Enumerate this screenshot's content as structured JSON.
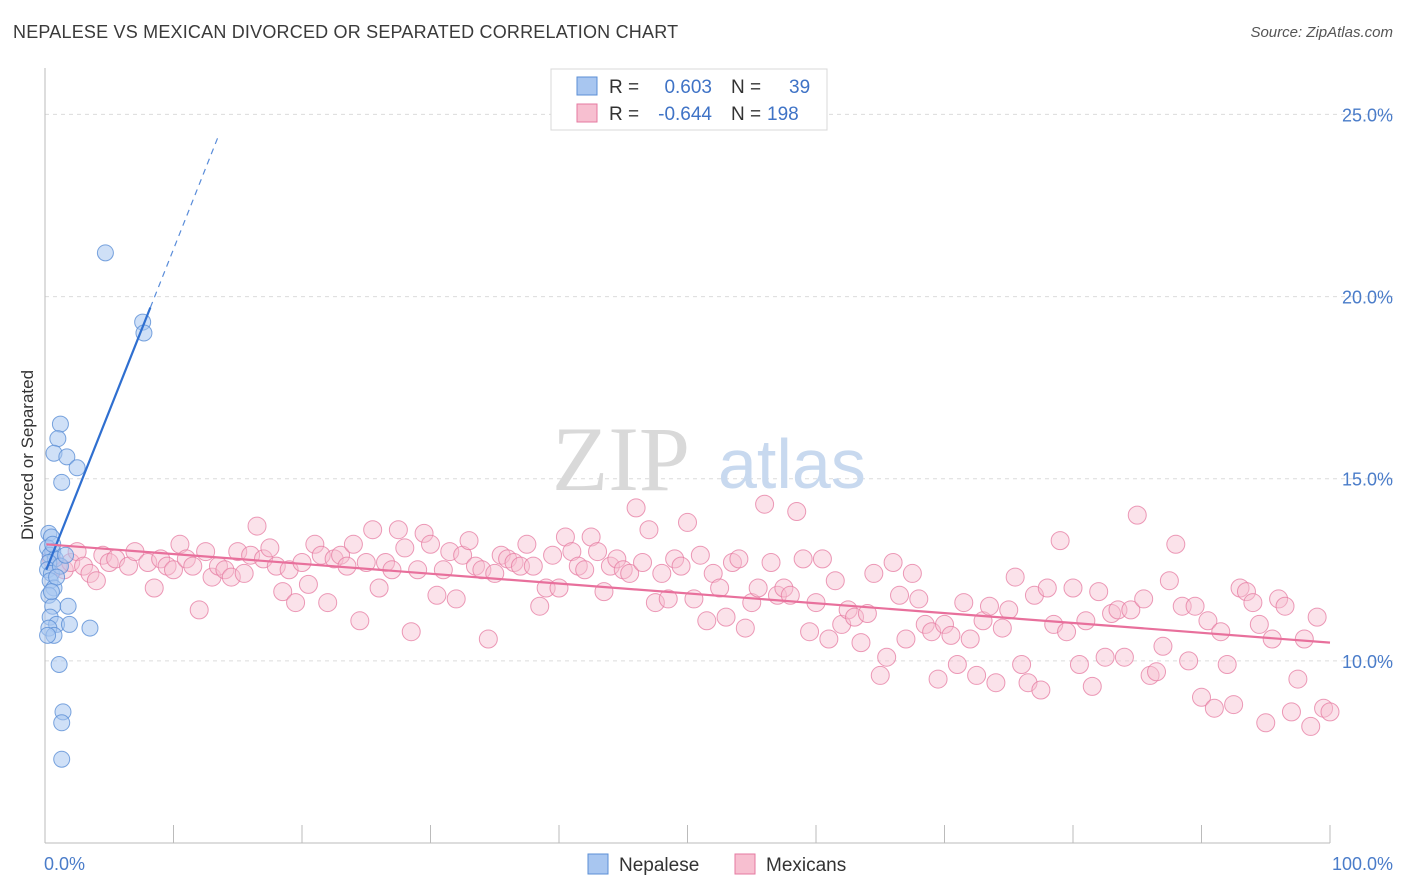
{
  "title": "NEPALESE VS MEXICAN DIVORCED OR SEPARATED CORRELATION CHART",
  "source": "Source: ZipAtlas.com",
  "watermark": {
    "part1": "ZIP",
    "part2": "atlas"
  },
  "legend": {
    "rows": [
      {
        "r_label": "R =",
        "r_value": "0.603",
        "n_label": "N =",
        "n_value": "39",
        "color": "#a8c6f0",
        "stroke": "#5b8fd6"
      },
      {
        "r_label": "R =",
        "r_value": "-0.644",
        "n_label": "N =",
        "n_value": "198",
        "color": "#f7bfd0",
        "stroke": "#e57aa0"
      }
    ]
  },
  "bottom_legend": [
    {
      "label": "Nepalese",
      "color": "#a8c6f0",
      "stroke": "#5b8fd6"
    },
    {
      "label": "Mexicans",
      "color": "#f7bfd0",
      "stroke": "#e57aa0"
    }
  ],
  "chart_data": {
    "type": "scatter",
    "title": "NEPALESE VS MEXICAN DIVORCED OR SEPARATED CORRELATION CHART",
    "xlabel": "",
    "ylabel": "Divorced or Separated",
    "xlim": [
      0,
      100
    ],
    "ylim": [
      5,
      26
    ],
    "x_tick_labels": [
      "0.0%",
      "100.0%"
    ],
    "y_ticks": [
      10,
      15,
      20,
      25
    ],
    "y_tick_labels": [
      "10.0%",
      "15.0%",
      "20.0%",
      "25.0%"
    ],
    "grid": "horizontal dashed",
    "legend_position": "top-center",
    "series": [
      {
        "name": "Nepalese",
        "color": "#a8c6f0",
        "stroke": "#5b8fd6",
        "trend_color": "#2f6fd0",
        "trend": {
          "x0": 0.1,
          "y0": 12.5,
          "x1": 8.2,
          "y1": 19.7,
          "dash_to_x": 13.5
        },
        "points": [
          [
            0.3,
            13.5
          ],
          [
            0.5,
            13.4
          ],
          [
            0.2,
            13.1
          ],
          [
            0.6,
            13.0
          ],
          [
            0.4,
            12.9
          ],
          [
            0.8,
            12.8
          ],
          [
            0.3,
            12.7
          ],
          [
            0.2,
            12.5
          ],
          [
            0.5,
            12.4
          ],
          [
            0.4,
            12.2
          ],
          [
            0.7,
            12.0
          ],
          [
            0.3,
            11.8
          ],
          [
            0.6,
            11.5
          ],
          [
            1.8,
            11.5
          ],
          [
            0.4,
            11.2
          ],
          [
            0.9,
            11.0
          ],
          [
            1.9,
            11.0
          ],
          [
            0.3,
            10.9
          ],
          [
            3.5,
            10.9
          ],
          [
            0.7,
            10.7
          ],
          [
            0.2,
            10.7
          ],
          [
            1.1,
            9.9
          ],
          [
            1.4,
            8.6
          ],
          [
            1.3,
            8.3
          ],
          [
            1.3,
            7.3
          ],
          [
            1.2,
            16.5
          ],
          [
            1.0,
            16.1
          ],
          [
            0.7,
            15.7
          ],
          [
            1.7,
            15.6
          ],
          [
            2.5,
            15.3
          ],
          [
            1.3,
            14.9
          ],
          [
            4.7,
            21.2
          ],
          [
            7.6,
            19.3
          ],
          [
            7.7,
            19.0
          ],
          [
            0.6,
            13.2
          ],
          [
            1.2,
            12.6
          ],
          [
            0.9,
            12.3
          ],
          [
            0.5,
            11.9
          ],
          [
            1.6,
            12.9
          ]
        ]
      },
      {
        "name": "Mexicans",
        "color": "#f7bfd0",
        "stroke": "#e57aa0",
        "trend_color": "#e8709c",
        "trend": {
          "x0": 0.1,
          "y0": 13.2,
          "x1": 100,
          "y1": 10.5
        },
        "points": [
          [
            0.5,
            12.8
          ],
          [
            1.0,
            12.6
          ],
          [
            1.5,
            12.5
          ],
          [
            2.0,
            12.7
          ],
          [
            2.5,
            13.0
          ],
          [
            3.0,
            12.6
          ],
          [
            3.5,
            12.4
          ],
          [
            4.0,
            12.2
          ],
          [
            4.5,
            12.9
          ],
          [
            5.0,
            12.7
          ],
          [
            5.5,
            12.8
          ],
          [
            6.5,
            12.6
          ],
          [
            7.0,
            13.0
          ],
          [
            8.0,
            12.7
          ],
          [
            8.5,
            12.0
          ],
          [
            9.0,
            12.8
          ],
          [
            9.5,
            12.6
          ],
          [
            10.0,
            12.5
          ],
          [
            10.5,
            13.2
          ],
          [
            11.0,
            12.8
          ],
          [
            11.5,
            12.6
          ],
          [
            12.0,
            11.4
          ],
          [
            12.5,
            13.0
          ],
          [
            13.0,
            12.3
          ],
          [
            13.5,
            12.6
          ],
          [
            14.0,
            12.5
          ],
          [
            14.5,
            12.3
          ],
          [
            15.0,
            13.0
          ],
          [
            15.5,
            12.4
          ],
          [
            16.0,
            12.9
          ],
          [
            16.5,
            13.7
          ],
          [
            17.0,
            12.8
          ],
          [
            17.5,
            13.1
          ],
          [
            18.0,
            12.6
          ],
          [
            18.5,
            11.9
          ],
          [
            19.0,
            12.5
          ],
          [
            19.5,
            11.6
          ],
          [
            20.0,
            12.7
          ],
          [
            20.5,
            12.1
          ],
          [
            21.0,
            13.2
          ],
          [
            21.5,
            12.9
          ],
          [
            22.0,
            11.6
          ],
          [
            22.5,
            12.8
          ],
          [
            23.0,
            12.9
          ],
          [
            23.5,
            12.6
          ],
          [
            24.0,
            13.2
          ],
          [
            24.5,
            11.1
          ],
          [
            25.0,
            12.7
          ],
          [
            25.5,
            13.6
          ],
          [
            26.0,
            12.0
          ],
          [
            26.5,
            12.7
          ],
          [
            27.0,
            12.5
          ],
          [
            27.5,
            13.6
          ],
          [
            28.0,
            13.1
          ],
          [
            28.5,
            10.8
          ],
          [
            29.0,
            12.5
          ],
          [
            29.5,
            13.5
          ],
          [
            30.0,
            13.2
          ],
          [
            30.5,
            11.8
          ],
          [
            31.0,
            12.5
          ],
          [
            31.5,
            13.0
          ],
          [
            32.0,
            11.7
          ],
          [
            32.5,
            12.9
          ],
          [
            33.0,
            13.3
          ],
          [
            33.5,
            12.6
          ],
          [
            34.0,
            12.5
          ],
          [
            34.5,
            10.6
          ],
          [
            35.0,
            12.4
          ],
          [
            35.5,
            12.9
          ],
          [
            36.0,
            12.8
          ],
          [
            36.5,
            12.7
          ],
          [
            37.0,
            12.6
          ],
          [
            37.5,
            13.2
          ],
          [
            38.0,
            12.6
          ],
          [
            38.5,
            11.5
          ],
          [
            39.0,
            12.0
          ],
          [
            39.5,
            12.9
          ],
          [
            40.0,
            12.0
          ],
          [
            40.5,
            13.4
          ],
          [
            41.0,
            13.0
          ],
          [
            41.5,
            12.6
          ],
          [
            42.0,
            12.5
          ],
          [
            42.5,
            13.4
          ],
          [
            43.0,
            13.0
          ],
          [
            43.5,
            11.9
          ],
          [
            44.0,
            12.6
          ],
          [
            44.5,
            12.8
          ],
          [
            45.0,
            12.5
          ],
          [
            45.5,
            12.4
          ],
          [
            46.0,
            14.2
          ],
          [
            46.5,
            12.7
          ],
          [
            47.0,
            13.6
          ],
          [
            47.5,
            11.6
          ],
          [
            48.0,
            12.4
          ],
          [
            48.5,
            11.7
          ],
          [
            49.0,
            12.8
          ],
          [
            49.5,
            12.6
          ],
          [
            50.0,
            13.8
          ],
          [
            50.5,
            11.7
          ],
          [
            51.0,
            12.9
          ],
          [
            51.5,
            11.1
          ],
          [
            52.0,
            12.4
          ],
          [
            52.5,
            12.0
          ],
          [
            53.0,
            11.2
          ],
          [
            53.5,
            12.7
          ],
          [
            54.0,
            12.8
          ],
          [
            54.5,
            10.9
          ],
          [
            55.0,
            11.6
          ],
          [
            55.5,
            12.0
          ],
          [
            56.0,
            14.3
          ],
          [
            56.5,
            12.7
          ],
          [
            57.0,
            11.8
          ],
          [
            57.5,
            12.0
          ],
          [
            58.0,
            11.8
          ],
          [
            58.5,
            14.1
          ],
          [
            59.0,
            12.8
          ],
          [
            59.5,
            10.8
          ],
          [
            60.0,
            11.6
          ],
          [
            60.5,
            12.8
          ],
          [
            61.0,
            10.6
          ],
          [
            61.5,
            12.2
          ],
          [
            62.0,
            11.0
          ],
          [
            62.5,
            11.4
          ],
          [
            63.0,
            11.2
          ],
          [
            63.5,
            10.5
          ],
          [
            64.0,
            11.3
          ],
          [
            64.5,
            12.4
          ],
          [
            65.0,
            9.6
          ],
          [
            65.5,
            10.1
          ],
          [
            66.0,
            12.7
          ],
          [
            66.5,
            11.8
          ],
          [
            67.0,
            10.6
          ],
          [
            67.5,
            12.4
          ],
          [
            68.0,
            11.7
          ],
          [
            68.5,
            11.0
          ],
          [
            69.0,
            10.8
          ],
          [
            69.5,
            9.5
          ],
          [
            70.0,
            11.0
          ],
          [
            70.5,
            10.7
          ],
          [
            71.0,
            9.9
          ],
          [
            71.5,
            11.6
          ],
          [
            72.0,
            10.6
          ],
          [
            72.5,
            9.6
          ],
          [
            73.0,
            11.1
          ],
          [
            73.5,
            11.5
          ],
          [
            74.0,
            9.4
          ],
          [
            74.5,
            10.9
          ],
          [
            75.0,
            11.4
          ],
          [
            75.5,
            12.3
          ],
          [
            76.0,
            9.9
          ],
          [
            76.5,
            9.4
          ],
          [
            77.0,
            11.8
          ],
          [
            77.5,
            9.2
          ],
          [
            78.0,
            12.0
          ],
          [
            78.5,
            11.0
          ],
          [
            79.0,
            13.3
          ],
          [
            79.5,
            10.8
          ],
          [
            80.0,
            12.0
          ],
          [
            80.5,
            9.9
          ],
          [
            81.0,
            11.1
          ],
          [
            81.5,
            9.3
          ],
          [
            82.0,
            11.9
          ],
          [
            82.5,
            10.1
          ],
          [
            83.0,
            11.3
          ],
          [
            83.5,
            11.4
          ],
          [
            84.0,
            10.1
          ],
          [
            84.5,
            11.4
          ],
          [
            85.0,
            14.0
          ],
          [
            85.5,
            11.7
          ],
          [
            86.0,
            9.6
          ],
          [
            86.5,
            9.7
          ],
          [
            87.0,
            10.4
          ],
          [
            87.5,
            12.2
          ],
          [
            88.0,
            13.2
          ],
          [
            88.5,
            11.5
          ],
          [
            89.0,
            10.0
          ],
          [
            89.5,
            11.5
          ],
          [
            90.0,
            9.0
          ],
          [
            90.5,
            11.1
          ],
          [
            91.0,
            8.7
          ],
          [
            91.5,
            10.8
          ],
          [
            92.0,
            9.9
          ],
          [
            92.5,
            8.8
          ],
          [
            93.0,
            12.0
          ],
          [
            93.5,
            11.9
          ],
          [
            94.0,
            11.6
          ],
          [
            94.5,
            11.0
          ],
          [
            95.0,
            8.3
          ],
          [
            95.5,
            10.6
          ],
          [
            96.0,
            11.7
          ],
          [
            96.5,
            11.5
          ],
          [
            97.0,
            8.6
          ],
          [
            97.5,
            9.5
          ],
          [
            98.0,
            10.6
          ],
          [
            98.5,
            8.2
          ],
          [
            99.0,
            11.2
          ],
          [
            99.5,
            8.7
          ],
          [
            100.0,
            8.6
          ]
        ]
      }
    ]
  }
}
